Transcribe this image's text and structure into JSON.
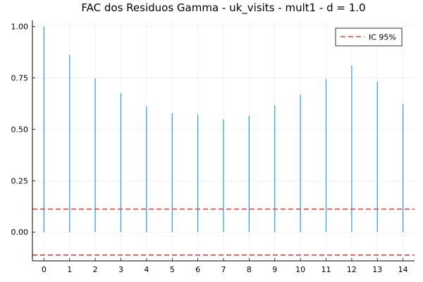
{
  "chart_data": {
    "type": "stem",
    "title": "FAC dos Residuos  Gamma - uk_visits - mult1 - d = 1.0",
    "xlabel": "",
    "ylabel": "",
    "x": [
      0,
      1,
      2,
      3,
      4,
      5,
      6,
      7,
      8,
      9,
      10,
      11,
      12,
      13,
      14
    ],
    "values": [
      1.0,
      0.862,
      0.748,
      0.676,
      0.612,
      0.579,
      0.572,
      0.549,
      0.566,
      0.617,
      0.668,
      0.745,
      0.811,
      0.731,
      0.623
    ],
    "xticks": [
      "0",
      "1",
      "2",
      "3",
      "4",
      "5",
      "6",
      "7",
      "8",
      "9",
      "10",
      "11",
      "12",
      "13",
      "14"
    ],
    "yticks": [
      "0.00",
      "0.25",
      "0.50",
      "0.75",
      "1.00"
    ],
    "xlim": [
      -0.45,
      14.45
    ],
    "ylim": [
      -0.14,
      1.03
    ],
    "confidence_band": {
      "upper": 0.112,
      "lower": -0.112,
      "color": "#e8413a"
    },
    "series_color": "#1f9fdb",
    "grid": true,
    "legend": {
      "position": "top-right",
      "entries": [
        {
          "label": "IC 95%",
          "style": "dashed",
          "color": "#e8413a"
        }
      ]
    }
  }
}
